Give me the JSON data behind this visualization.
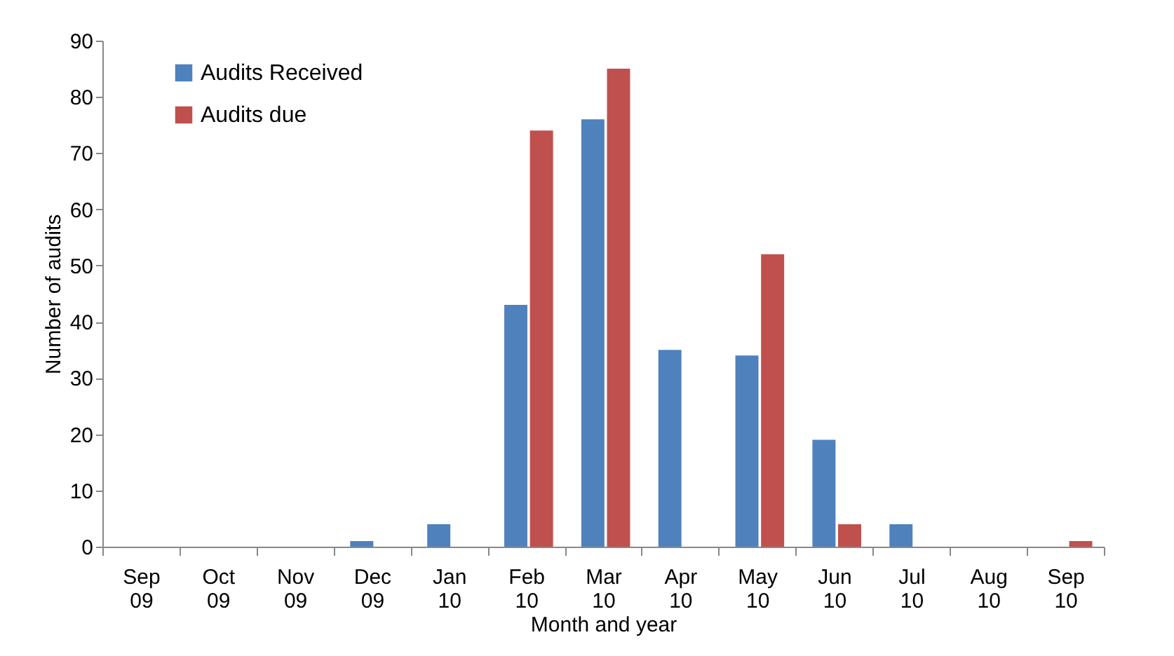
{
  "chart_data": {
    "type": "bar",
    "xlabel": "Month and year",
    "ylabel": "Number of audits",
    "categories": [
      "Sep 09",
      "Oct 09",
      "Nov 09",
      "Dec 09",
      "Jan 10",
      "Feb 10",
      "Mar 10",
      "Apr 10",
      "May 10",
      "Jun 10",
      "Jul 10",
      "Aug 10",
      "Sep 10"
    ],
    "series": [
      {
        "name": "Audits Received",
        "color": "#4f81bd",
        "values": [
          0,
          0,
          0,
          1,
          4,
          43,
          76,
          35,
          34,
          19,
          4,
          0,
          0
        ]
      },
      {
        "name": "Audits due",
        "color": "#c0504d",
        "values": [
          0,
          0,
          0,
          0,
          0,
          74,
          85,
          0,
          52,
          4,
          0,
          0,
          1
        ]
      }
    ],
    "ylim": [
      0,
      90
    ],
    "yticks": [
      0,
      10,
      20,
      30,
      40,
      50,
      60,
      70,
      80,
      90
    ],
    "grid": false,
    "legend": "top left"
  }
}
